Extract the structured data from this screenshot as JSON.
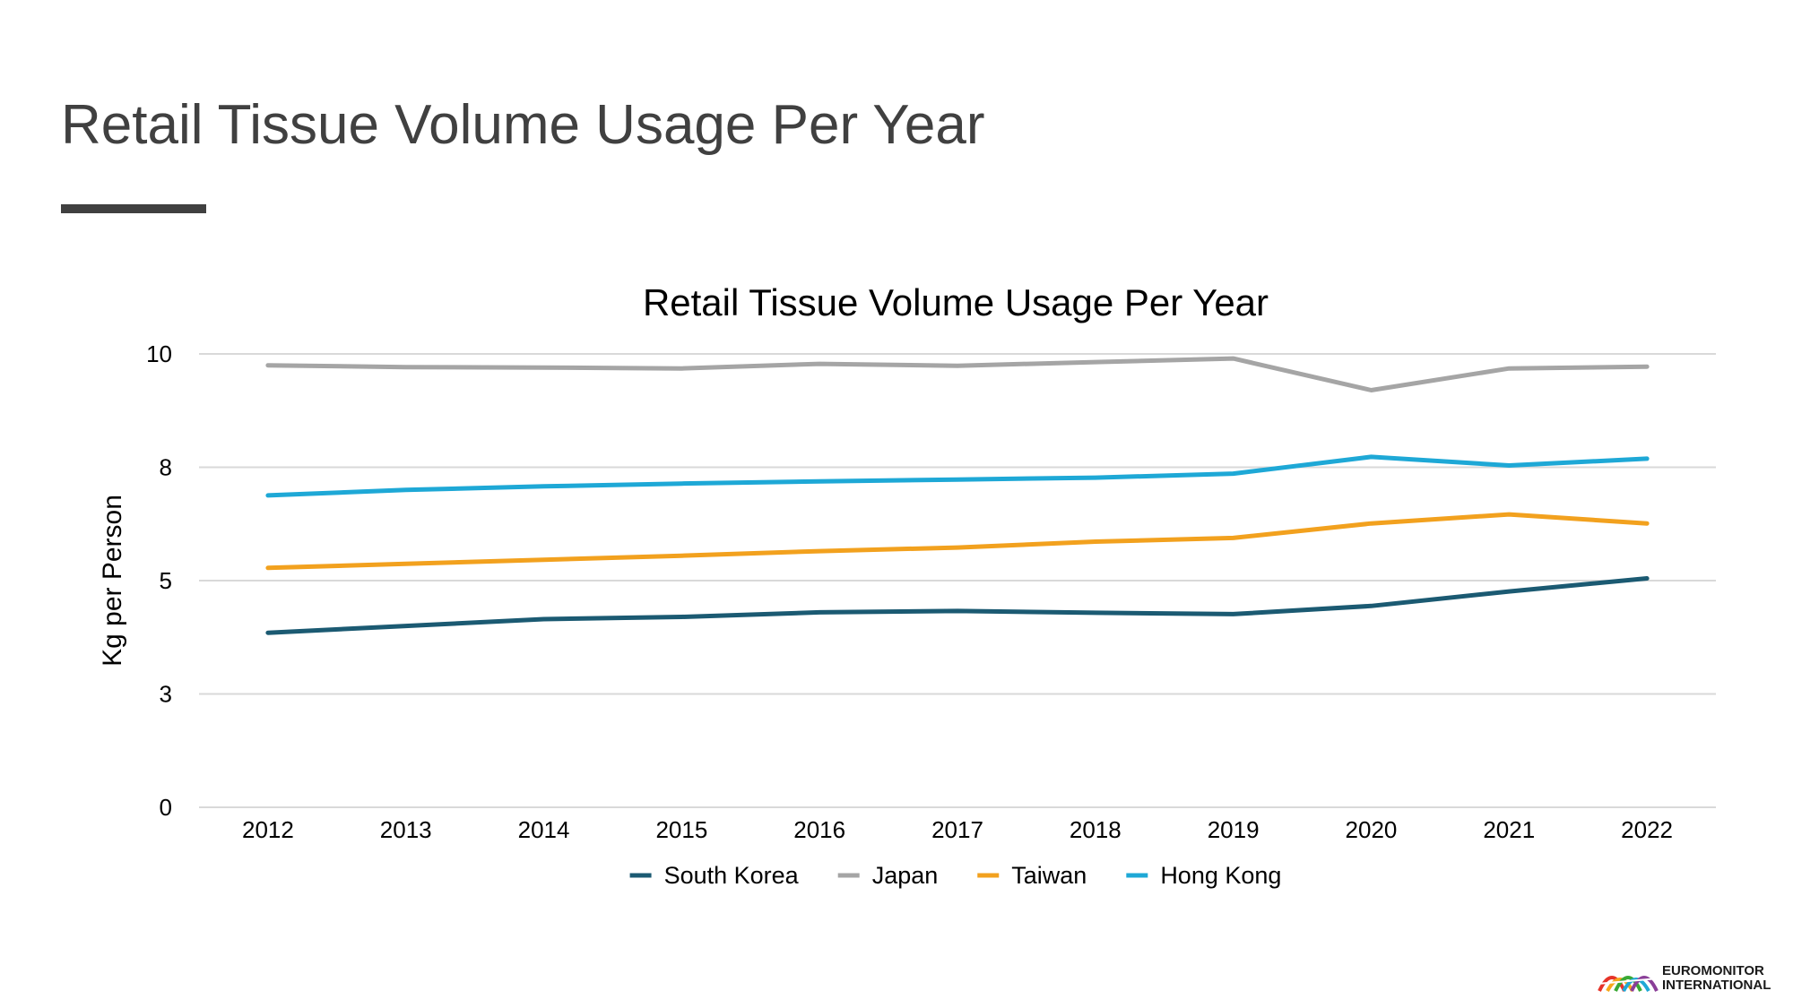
{
  "slide": {
    "title": "Retail Tissue Volume Usage Per Year"
  },
  "chart_data": {
    "type": "line",
    "title": "Retail Tissue Volume Usage Per Year",
    "xlabel": "",
    "ylabel": "Kg per Person",
    "ylim": [
      0,
      10
    ],
    "yticks": [
      0,
      2.5,
      5,
      7.5,
      10
    ],
    "ytick_labels": [
      "0",
      "3",
      "5",
      "8",
      "10"
    ],
    "grid": true,
    "legend": "bottom",
    "categories": [
      "2012",
      "2013",
      "2014",
      "2015",
      "2016",
      "2017",
      "2018",
      "2019",
      "2020",
      "2021",
      "2022"
    ],
    "series": [
      {
        "name": "South Korea",
        "color": "#1b5a72",
        "values": [
          3.85,
          4.0,
          4.15,
          4.2,
          4.3,
          4.33,
          4.29,
          4.26,
          4.44,
          4.76,
          5.05
        ]
      },
      {
        "name": "Japan",
        "color": "#a5a5a5",
        "values": [
          9.75,
          9.71,
          9.7,
          9.68,
          9.78,
          9.74,
          9.82,
          9.9,
          9.2,
          9.68,
          9.72
        ]
      },
      {
        "name": "Taiwan",
        "color": "#f2a11e",
        "values": [
          5.28,
          5.37,
          5.46,
          5.55,
          5.65,
          5.73,
          5.86,
          5.94,
          6.26,
          6.46,
          6.26
        ]
      },
      {
        "name": "Hong Kong",
        "color": "#1ea8d6",
        "values": [
          6.88,
          7.0,
          7.08,
          7.14,
          7.19,
          7.23,
          7.27,
          7.36,
          7.73,
          7.54,
          7.69
        ]
      }
    ]
  },
  "logo": {
    "line1": "EUROMONITOR",
    "line2": "INTERNATIONAL",
    "colors": [
      "#e63329",
      "#f7a81b",
      "#3aa935",
      "#1ea8d6",
      "#8a3f98"
    ]
  }
}
